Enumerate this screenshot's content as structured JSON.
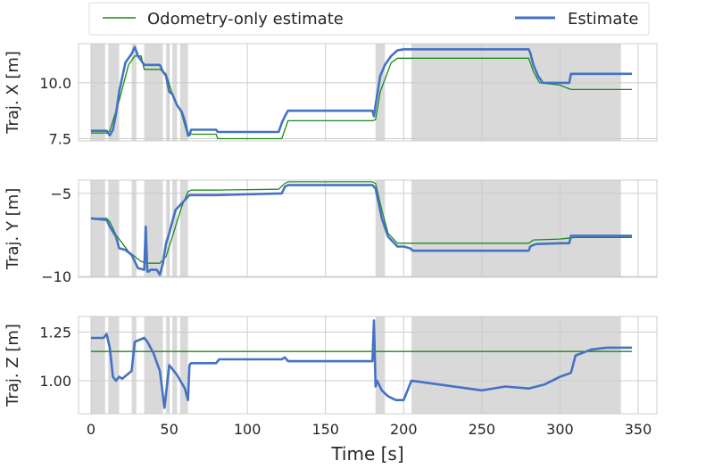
{
  "chart_data": {
    "type": "line",
    "xlabel": "Time [s]",
    "xlim": [
      -8,
      362
    ],
    "xticks": [
      0,
      50,
      100,
      150,
      200,
      250,
      300,
      350
    ],
    "xtick_labels": [
      "0",
      "50",
      "100",
      "150",
      "200",
      "250",
      "300",
      "350"
    ],
    "colors": {
      "odometry": "#1a8a1a",
      "estimate": "#4472c4",
      "shade": "#d9d9d9",
      "grid": "#cccccc",
      "frame": "#cccccc"
    },
    "legend": {
      "placement": "top",
      "entries": [
        {
          "name": "Odometry-only estimate",
          "series": "odometry"
        },
        {
          "name": "Estimate",
          "series": "estimate"
        }
      ]
    },
    "shaded_intervals": [
      [
        0,
        9
      ],
      [
        11,
        18
      ],
      [
        26,
        29
      ],
      [
        34,
        46
      ],
      [
        48,
        50
      ],
      [
        52,
        55
      ],
      [
        57,
        62
      ],
      [
        182,
        188
      ],
      [
        205,
        339
      ]
    ],
    "panels": [
      {
        "ylabel": "Traj. X [m]",
        "ylim": [
          7.4,
          11.75
        ],
        "yticks": [
          7.5,
          10.0
        ],
        "ytick_labels": [
          "7.5",
          "10.0"
        ],
        "series": [
          {
            "name": "Odometry-only estimate",
            "key": "odometry",
            "x": [
              0,
              10,
              12,
              18,
              24,
              28,
              32,
              34,
              44,
              48,
              52,
              58,
              62,
              63,
              80,
              81,
              122,
              124,
              126,
              180,
              182,
              185,
              192,
              196,
              280,
              283,
              287,
              300,
              307,
              346
            ],
            "y": [
              7.75,
              7.75,
              7.85,
              9.2,
              10.8,
              11.2,
              11.2,
              10.6,
              10.6,
              10.4,
              9.5,
              8.6,
              7.6,
              7.7,
              7.7,
              7.5,
              7.5,
              7.9,
              8.3,
              8.3,
              8.35,
              9.6,
              10.9,
              11.1,
              11.1,
              10.5,
              10.0,
              9.9,
              9.7,
              9.7
            ]
          },
          {
            "name": "Estimate",
            "key": "estimate",
            "x": [
              0,
              10,
              12,
              14,
              16,
              18,
              22,
              26,
              28,
              30,
              32,
              34,
              36,
              44,
              46,
              48,
              50,
              52,
              55,
              58,
              60,
              62,
              63,
              64,
              80,
              81,
              120,
              122,
              124,
              126,
              180,
              181,
              182,
              185,
              188,
              192,
              196,
              200,
              280,
              281,
              283,
              286,
              289,
              300,
              306,
              307,
              346
            ],
            "y": [
              7.85,
              7.85,
              7.65,
              7.9,
              8.6,
              9.6,
              10.9,
              11.3,
              11.6,
              11.2,
              11.0,
              10.8,
              10.8,
              10.8,
              10.5,
              10.3,
              9.6,
              9.5,
              9.0,
              8.7,
              8.3,
              7.7,
              7.65,
              7.9,
              7.9,
              7.8,
              7.8,
              8.2,
              8.5,
              8.75,
              8.75,
              8.5,
              9.0,
              10.3,
              10.8,
              11.2,
              11.45,
              11.5,
              11.5,
              11.35,
              10.8,
              10.3,
              10.0,
              10.0,
              10.0,
              10.4,
              10.4
            ]
          }
        ]
      },
      {
        "ylabel": "Traj. Y [m]",
        "ylim": [
          -10.05,
          -4.2
        ],
        "yticks": [
          -5,
          -10
        ],
        "ytick_labels": [
          "−5",
          "−10"
        ],
        "series": [
          {
            "name": "Odometry-only estimate",
            "key": "odometry",
            "x": [
              0,
              10,
              12,
              16,
              20,
              24,
              28,
              32,
              36,
              44,
              48,
              54,
              58,
              62,
              64,
              80,
              120,
              124,
              126,
              180,
              182,
              186,
              190,
              196,
              280,
              283,
              300,
              310,
              346
            ],
            "y": [
              -6.5,
              -6.5,
              -6.7,
              -7.5,
              -8.0,
              -8.5,
              -8.8,
              -9.1,
              -9.2,
              -9.2,
              -8.8,
              -7.0,
              -5.8,
              -4.9,
              -4.8,
              -4.8,
              -4.75,
              -4.4,
              -4.3,
              -4.3,
              -4.4,
              -6.0,
              -7.4,
              -8.0,
              -8.0,
              -7.8,
              -7.75,
              -7.65,
              -7.65
            ]
          },
          {
            "name": "Estimate",
            "key": "estimate",
            "x": [
              0,
              10,
              12,
              14,
              16,
              18,
              22,
              26,
              30,
              34,
              35,
              36,
              37,
              38,
              42,
              44,
              46,
              48,
              50,
              54,
              58,
              62,
              63,
              64,
              80,
              122,
              124,
              126,
              180,
              182,
              186,
              190,
              196,
              200,
              204,
              206,
              280,
              281,
              283,
              285,
              300,
              306,
              307,
              346
            ],
            "y": [
              -6.5,
              -6.6,
              -7.0,
              -7.3,
              -7.6,
              -8.3,
              -8.4,
              -8.7,
              -9.5,
              -9.6,
              -7.0,
              -9.7,
              -9.7,
              -9.6,
              -9.6,
              -9.9,
              -9.2,
              -8.0,
              -7.4,
              -6.0,
              -5.6,
              -5.2,
              -5.1,
              -5.1,
              -5.1,
              -5.0,
              -4.6,
              -4.5,
              -4.5,
              -4.7,
              -6.5,
              -7.6,
              -8.2,
              -8.2,
              -8.3,
              -8.45,
              -8.45,
              -8.2,
              -8.1,
              -8.05,
              -8.0,
              -8.0,
              -7.55,
              -7.55
            ]
          }
        ]
      },
      {
        "ylabel": "Traj. Z [m]",
        "ylim": [
          0.83,
          1.33
        ],
        "yticks": [
          1.25,
          1.0
        ],
        "ytick_labels": [
          "1.25",
          "1.00"
        ],
        "series": [
          {
            "name": "Odometry-only estimate",
            "key": "odometry",
            "x": [
              0,
              346
            ],
            "y": [
              1.15,
              1.15
            ]
          },
          {
            "name": "Estimate",
            "key": "estimate",
            "x": [
              0,
              8,
              10,
              12,
              14,
              16,
              18,
              20,
              26,
              28,
              34,
              36,
              40,
              44,
              47,
              50,
              55,
              60,
              62,
              63,
              64,
              80,
              82,
              122,
              124,
              126,
              180,
              181,
              182,
              183,
              186,
              190,
              195,
              200,
              205,
              250,
              265,
              280,
              290,
              300,
              307,
              310,
              320,
              330,
              340,
              346
            ],
            "y": [
              1.22,
              1.22,
              1.24,
              1.17,
              1.02,
              1.0,
              1.02,
              1.01,
              1.05,
              1.2,
              1.22,
              1.2,
              1.14,
              1.05,
              0.86,
              1.08,
              1.03,
              0.96,
              0.9,
              1.08,
              1.09,
              1.09,
              1.11,
              1.11,
              1.12,
              1.1,
              1.1,
              1.31,
              0.97,
              1.0,
              0.95,
              0.92,
              0.9,
              0.9,
              1.0,
              0.95,
              0.97,
              0.96,
              0.98,
              1.02,
              1.04,
              1.13,
              1.16,
              1.17,
              1.17,
              1.17
            ]
          }
        ]
      }
    ]
  }
}
